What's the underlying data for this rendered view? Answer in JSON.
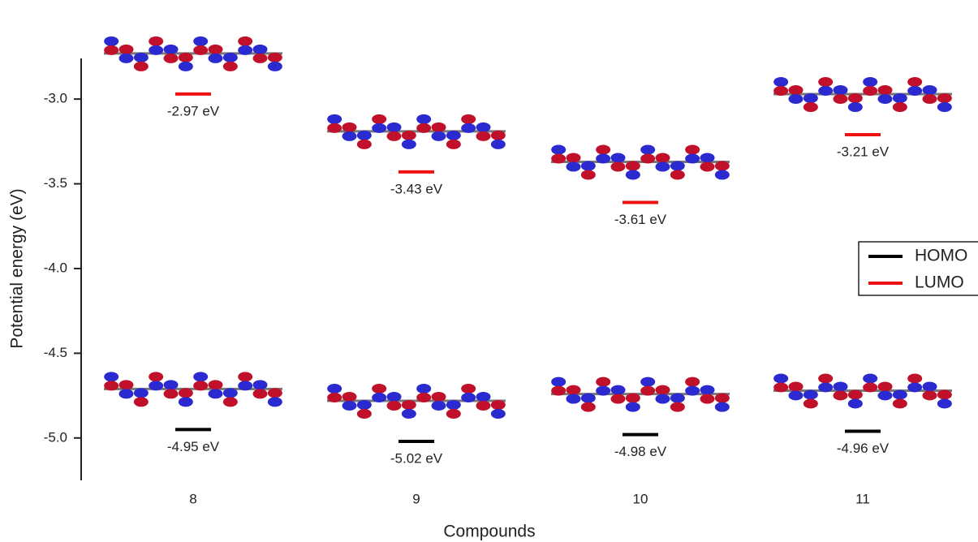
{
  "chart_data": {
    "type": "energy-level",
    "x_label": "Compounds",
    "y_label": "Potential energy (eV)",
    "categories": [
      "8",
      "9",
      "10",
      "11"
    ],
    "series": [
      {
        "name": "HOMO",
        "color": "#000000",
        "values": [
          -4.95,
          -5.02,
          -4.98,
          -4.96
        ],
        "value_labels": [
          "-4.95 eV",
          "-5.02 eV",
          "-4.98 eV",
          "-4.96 eV"
        ]
      },
      {
        "name": "LUMO",
        "color": "#ee1111",
        "values": [
          -2.97,
          -3.43,
          -3.61,
          -3.21
        ],
        "value_labels": [
          "-2.97 eV",
          "-3.43 eV",
          "-3.61 eV",
          "-3.21 eV"
        ]
      }
    ],
    "ylim": [
      -5.25,
      -2.76
    ],
    "yticks": [
      {
        "value": -3,
        "label": "-3.0"
      },
      -3.5,
      {
        "value": -4,
        "label": "-4.0"
      },
      -4.5,
      {
        "value": -5,
        "label": "-5.0"
      }
    ],
    "legend": "right"
  }
}
